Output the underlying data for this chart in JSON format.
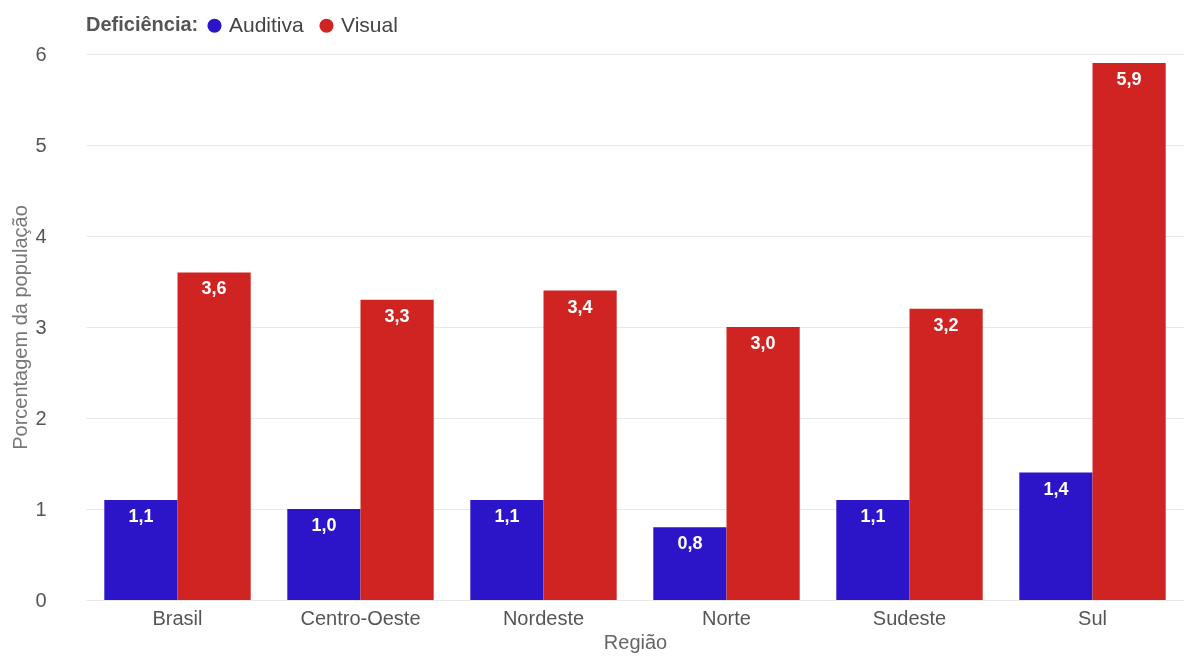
{
  "chart_data": {
    "type": "bar",
    "xlabel": "Região",
    "ylabel": "Porcentagem da população",
    "legend_title": "Deficiência:",
    "categories": [
      "Brasil",
      "Centro-Oeste",
      "Nordeste",
      "Norte",
      "Sudeste",
      "Sul"
    ],
    "series": [
      {
        "name": "Auditiva",
        "color": "#2c14c8",
        "values": [
          1.1,
          1.0,
          1.1,
          0.8,
          1.1,
          1.4
        ],
        "value_labels": [
          "1,1",
          "1,0",
          "1,1",
          "0,8",
          "1,1",
          "1,4"
        ]
      },
      {
        "name": "Visual",
        "color": "#d02422",
        "values": [
          3.6,
          3.3,
          3.4,
          3.0,
          3.2,
          5.9
        ],
        "value_labels": [
          "3,6",
          "3,3",
          "3,4",
          "3,0",
          "3,2",
          "5,9"
        ]
      }
    ],
    "ylim": [
      0,
      6
    ],
    "yticks": [
      0,
      1,
      2,
      3,
      4,
      5,
      6
    ],
    "grid": "y",
    "legend": "top left"
  }
}
